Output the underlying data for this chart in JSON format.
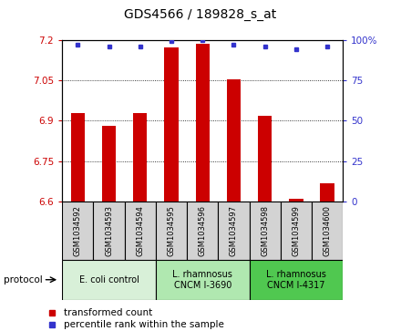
{
  "title": "GDS4566 / 189828_s_at",
  "samples": [
    "GSM1034592",
    "GSM1034593",
    "GSM1034594",
    "GSM1034595",
    "GSM1034596",
    "GSM1034597",
    "GSM1034598",
    "GSM1034599",
    "GSM1034600"
  ],
  "bar_values": [
    6.93,
    6.88,
    6.93,
    7.17,
    7.185,
    7.055,
    6.92,
    6.61,
    6.67
  ],
  "blue_values": [
    97,
    96,
    96,
    99,
    100,
    97,
    96,
    94,
    96
  ],
  "ylim_left": [
    6.6,
    7.2
  ],
  "ylim_right": [
    0,
    100
  ],
  "yticks_left": [
    6.6,
    6.75,
    6.9,
    7.05,
    7.2
  ],
  "yticks_right": [
    0,
    25,
    50,
    75,
    100
  ],
  "bar_color": "#cc0000",
  "blue_color": "#3333cc",
  "bar_width": 0.45,
  "group_colors": [
    "#d8f0d8",
    "#b0e8b0",
    "#50c850"
  ],
  "group_labels": [
    "E. coli control",
    "L. rhamnosus\nCNCM I-3690",
    "L. rhamnosus\nCNCM I-4317"
  ],
  "group_ranges": [
    [
      0,
      2
    ],
    [
      3,
      5
    ],
    [
      6,
      8
    ]
  ],
  "legend_items": [
    {
      "color": "#cc0000",
      "label": "transformed count"
    },
    {
      "color": "#3333cc",
      "label": "percentile rank within the sample"
    }
  ],
  "sample_box_color": "#d3d3d3"
}
